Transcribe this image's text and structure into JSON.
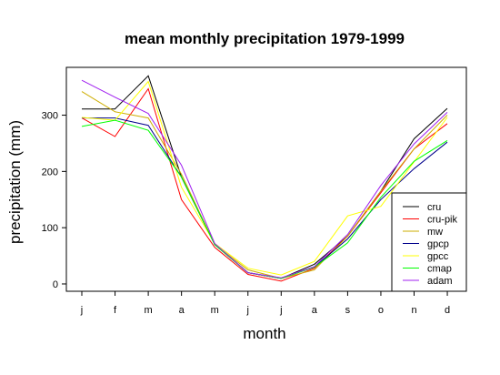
{
  "chart_data": {
    "type": "line",
    "title": "mean monthly precipitation 1979-1999",
    "xlabel": "month",
    "ylabel": "precipitation (mm)",
    "categories": [
      "j",
      "f",
      "m",
      "a",
      "m",
      "j",
      "j",
      "a",
      "s",
      "o",
      "n",
      "d"
    ],
    "y_ticks": [
      "0",
      "100",
      "200",
      "300"
    ],
    "ylim": [
      -13,
      385
    ],
    "grid": false,
    "legend_position": "bottom-right",
    "series": [
      {
        "name": "cru",
        "color": "#000000",
        "values": [
          311,
          311,
          370,
          190,
          70,
          20,
          10,
          35,
          85,
          165,
          258,
          312
        ]
      },
      {
        "name": "cru-pik",
        "color": "#ff0000",
        "values": [
          295,
          262,
          347,
          150,
          65,
          17,
          5,
          28,
          85,
          162,
          240,
          285
        ]
      },
      {
        "name": "mw",
        "color": "#cdad00",
        "values": [
          342,
          306,
          295,
          195,
          70,
          25,
          10,
          25,
          85,
          165,
          240,
          300
        ]
      },
      {
        "name": "gpcp",
        "color": "#00008b",
        "values": [
          295,
          295,
          282,
          190,
          70,
          20,
          10,
          30,
          80,
          150,
          205,
          252
        ]
      },
      {
        "name": "gpcc",
        "color": "#ffff00",
        "values": [
          296,
          291,
          360,
          172,
          72,
          28,
          16,
          40,
          121,
          138,
          217,
          296
        ]
      },
      {
        "name": "cmap",
        "color": "#00ff00",
        "values": [
          280,
          291,
          273,
          190,
          70,
          20,
          10,
          30,
          73,
          154,
          218,
          255
        ]
      },
      {
        "name": "adam",
        "color": "#a020f0",
        "values": [
          362,
          332,
          303,
          211,
          72,
          20,
          11,
          31,
          88,
          175,
          249,
          305
        ]
      }
    ]
  }
}
